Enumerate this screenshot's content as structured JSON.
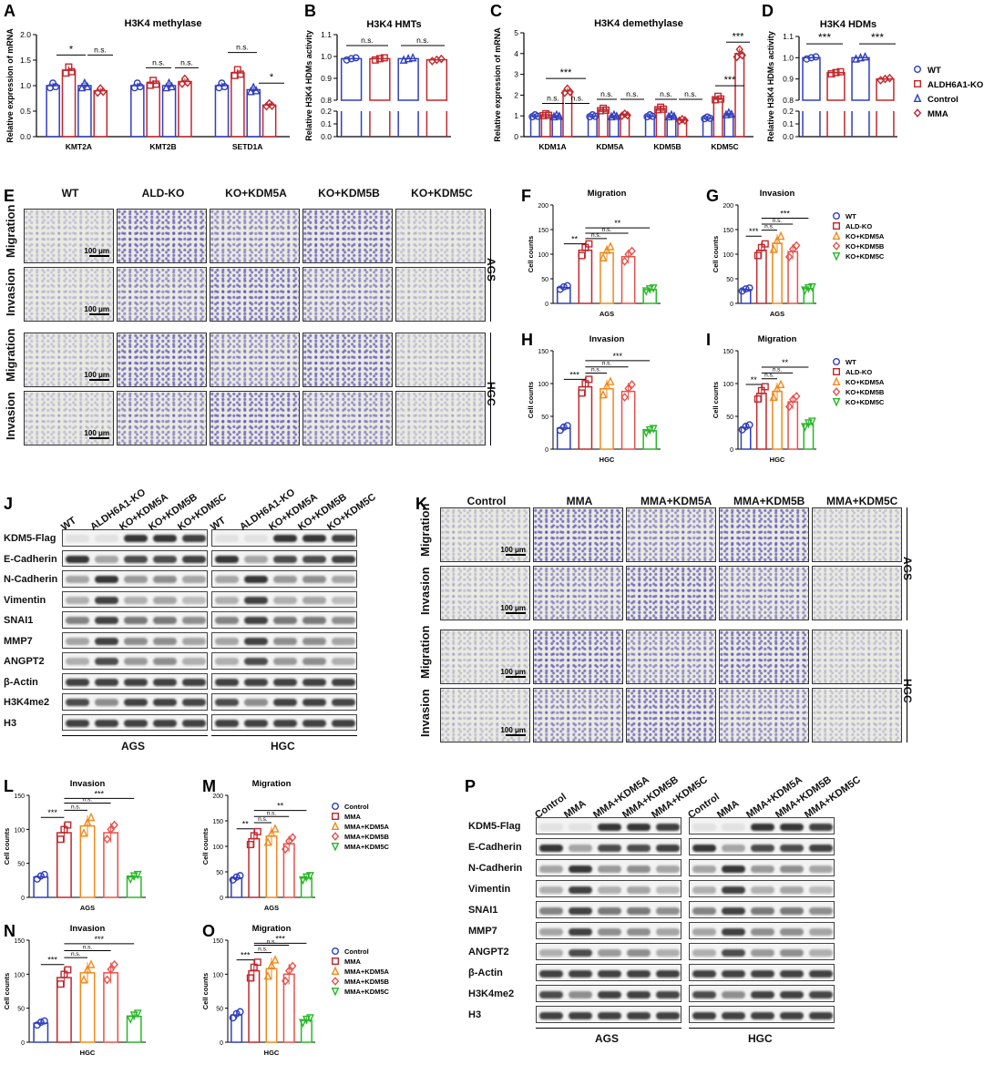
{
  "panel_letters": [
    "A",
    "B",
    "C",
    "D",
    "E",
    "F",
    "G",
    "H",
    "I",
    "J",
    "K",
    "L",
    "M",
    "N",
    "O",
    "P"
  ],
  "legend_wt": {
    "items": [
      "WT",
      "ALDH6A1-KO",
      "Control",
      "MMA"
    ],
    "colors": [
      "#2f3fbf",
      "#c0282d",
      "#2f3fbf",
      "#c0282d"
    ],
    "markers": [
      "circle",
      "square",
      "triangle",
      "diamond"
    ]
  },
  "legend_ko": {
    "items": [
      "WT",
      "ALD-KO",
      "KO+KDM5A",
      "KO+KDM5B",
      "KO+KDM5C"
    ],
    "colors": [
      "#2f3fbf",
      "#c0282d",
      "#f08a1c",
      "#e8504a",
      "#28b828"
    ]
  },
  "legend_mma": {
    "items": [
      "Control",
      "MMA",
      "MMA+KDM5A",
      "MMA+KDM5B",
      "MMA+KDM5C"
    ],
    "colors": [
      "#2f3fbf",
      "#c0282d",
      "#f08a1c",
      "#e8504a",
      "#28b828"
    ]
  },
  "chart_data": [
    {
      "panel": "A",
      "type": "bar",
      "title": "H3K4 methylase",
      "ylabel": "Relative expression of mRNA",
      "categories": [
        "KMT2A",
        "KMT2B",
        "SETD1A"
      ],
      "series": [
        {
          "name": "WT",
          "values": [
            1.0,
            1.0,
            1.0
          ]
        },
        {
          "name": "ALDH6A1-KO",
          "values": [
            1.3,
            1.05,
            1.25
          ]
        },
        {
          "name": "Control",
          "values": [
            1.0,
            1.0,
            0.92
          ]
        },
        {
          "name": "MMA",
          "values": [
            0.9,
            1.08,
            0.62
          ]
        }
      ],
      "ylim": [
        0,
        2.0
      ],
      "yticks": [
        "0.0",
        "0.5",
        "1.0",
        "1.5",
        "2.0"
      ],
      "sig": [
        "*",
        "n.s.",
        "n.s.",
        "n.s.",
        "n.s.",
        "*"
      ]
    },
    {
      "panel": "B",
      "type": "bar",
      "title": "H3K4 HMTs",
      "ylabel": "Relative H3K4 HDMs activity",
      "categories": [
        "WT",
        "ALDH6A1-KO",
        "Control",
        "MMA"
      ],
      "values": [
        0.99,
        0.99,
        0.99,
        0.985
      ],
      "ylim": [
        0,
        1.1
      ],
      "yticks": [
        "0.0",
        "0.1",
        "0.2",
        "0.8",
        "0.9",
        "1.0",
        "1.1"
      ],
      "sig": [
        "n.s.",
        "n.s."
      ]
    },
    {
      "panel": "C",
      "type": "bar",
      "title": "H3K4 demethylase",
      "ylabel": "Relative expression of mRNA",
      "categories": [
        "KDM1A",
        "KDM5A",
        "KDM5B",
        "KDM5C"
      ],
      "series": [
        {
          "name": "WT",
          "values": [
            1.0,
            1.0,
            1.0,
            0.9
          ]
        },
        {
          "name": "ALDH6A1-KO",
          "values": [
            1.05,
            1.3,
            1.35,
            1.85
          ]
        },
        {
          "name": "Control",
          "values": [
            1.0,
            1.0,
            1.0,
            1.1
          ]
        },
        {
          "name": "MMA",
          "values": [
            2.2,
            1.05,
            0.8,
            4.0
          ]
        }
      ],
      "ylim": [
        0,
        5
      ],
      "yticks": [
        "0",
        "1",
        "2",
        "3",
        "4",
        "5"
      ],
      "sig": [
        "n.s.",
        "n.s.",
        "***",
        "n.s.",
        "n.s.",
        "n.s.",
        "n.s.",
        "***",
        "***"
      ]
    },
    {
      "panel": "D",
      "type": "bar",
      "title": "H3K4 HDMs",
      "ylabel": "Relative H3K4 HDMs activity",
      "categories": [
        "WT",
        "ALDH6A1-KO",
        "Control",
        "MMA"
      ],
      "values": [
        1.0,
        0.93,
        1.0,
        0.9
      ],
      "ylim": [
        0,
        1.1
      ],
      "yticks": [
        "0.0",
        "0.1",
        "0.2",
        "0.8",
        "0.9",
        "1.0",
        "1.1"
      ],
      "sig": [
        "***",
        "***"
      ]
    },
    {
      "panel": "F",
      "type": "bar",
      "title": "Migration",
      "ylabel": "Cell counts",
      "xlabel": "AGS",
      "categories": [
        "WT",
        "ALD-KO",
        "KO+KDM5A",
        "KO+KDM5B",
        "KO+KDM5C"
      ],
      "values": [
        32,
        108,
        103,
        95,
        28
      ],
      "ylim": [
        0,
        200
      ],
      "yticks": [
        "0",
        "50",
        "100",
        "150",
        "200"
      ],
      "sig": [
        "**",
        "n.s.",
        "n.s.",
        "**"
      ]
    },
    {
      "panel": "G",
      "type": "bar",
      "title": "Invasion",
      "ylabel": "Cell counts",
      "xlabel": "AGS",
      "categories": [
        "WT",
        "ALD-KO",
        "KO+KDM5A",
        "KO+KDM5B",
        "KO+KDM5C"
      ],
      "values": [
        28,
        108,
        122,
        105,
        30
      ],
      "ylim": [
        0,
        200
      ],
      "yticks": [
        "0",
        "50",
        "100",
        "150",
        "200"
      ],
      "sig": [
        "***",
        "n.s.",
        "n.s.",
        "***"
      ]
    },
    {
      "panel": "H",
      "type": "bar",
      "title": "Invasion",
      "ylabel": "Cell counts",
      "xlabel": "HGC",
      "categories": [
        "WT",
        "ALD-KO",
        "KO+KDM5A",
        "KO+KDM5B",
        "KO+KDM5C"
      ],
      "values": [
        32,
        95,
        92,
        88,
        28
      ],
      "ylim": [
        0,
        150
      ],
      "yticks": [
        "0",
        "50",
        "100",
        "150"
      ],
      "sig": [
        "***",
        "n.s.",
        "n.s.",
        "***"
      ]
    },
    {
      "panel": "I",
      "type": "bar",
      "title": "Migration",
      "ylabel": "Cell counts",
      "xlabel": "HGC",
      "categories": [
        "WT",
        "ALD-KO",
        "KO+KDM5A",
        "KO+KDM5B",
        "KO+KDM5C"
      ],
      "values": [
        33,
        85,
        88,
        72,
        38
      ],
      "ylim": [
        0,
        150
      ],
      "yticks": [
        "0",
        "50",
        "100",
        "150"
      ],
      "sig": [
        "**",
        "n.s.",
        "n.s.",
        "**"
      ]
    },
    {
      "panel": "L",
      "type": "bar",
      "title": "Invasion",
      "ylabel": "Cell counts",
      "xlabel": "AGS",
      "categories": [
        "Control",
        "MMA",
        "MMA+KDM5A",
        "MMA+KDM5B",
        "MMA+KDM5C"
      ],
      "values": [
        30,
        95,
        105,
        95,
        30
      ],
      "ylim": [
        0,
        150
      ],
      "yticks": [
        "0",
        "50",
        "100",
        "150"
      ],
      "sig": [
        "***",
        "n.s.",
        "n.s.",
        "***"
      ]
    },
    {
      "panel": "M",
      "type": "bar",
      "title": "Migration",
      "ylabel": "Cell counts",
      "xlabel": "AGS",
      "categories": [
        "Control",
        "MMA",
        "MMA+KDM5A",
        "MMA+KDM5B",
        "MMA+KDM5C"
      ],
      "values": [
        38,
        115,
        120,
        105,
        38
      ],
      "ylim": [
        0,
        200
      ],
      "yticks": [
        "0",
        "50",
        "100",
        "150",
        "200"
      ],
      "sig": [
        "**",
        "n.s.",
        "n.s.",
        "**"
      ]
    },
    {
      "panel": "N",
      "type": "bar",
      "title": "Invasion",
      "ylabel": "Cell counts",
      "xlabel": "HGC",
      "categories": [
        "Control",
        "MMA",
        "MMA+KDM5A",
        "MMA+KDM5B",
        "MMA+KDM5C"
      ],
      "values": [
        28,
        95,
        102,
        102,
        38
      ],
      "ylim": [
        0,
        150
      ],
      "yticks": [
        "0",
        "50",
        "100",
        "150"
      ],
      "sig": [
        "***",
        "n.s.",
        "n.s.",
        "***"
      ]
    },
    {
      "panel": "O",
      "type": "bar",
      "title": "Migration",
      "ylabel": "Cell counts",
      "xlabel": "HGC",
      "categories": [
        "Control",
        "MMA",
        "MMA+KDM5A",
        "MMA+KDM5B",
        "MMA+KDM5C"
      ],
      "values": [
        40,
        105,
        108,
        100,
        32
      ],
      "ylim": [
        0,
        150
      ],
      "yticks": [
        "0",
        "50",
        "100",
        "150"
      ],
      "sig": [
        "***",
        "n.s.",
        "n.s.",
        "***"
      ]
    }
  ],
  "panel_e": {
    "cols": [
      "WT",
      "ALD-KO",
      "KO+KDM5A",
      "KO+KDM5B",
      "KO+KDM5C"
    ],
    "rows": [
      "Migration",
      "Invasion",
      "Migration",
      "Invasion"
    ],
    "groups": [
      "AGS",
      "HGC"
    ],
    "scale": "100 μm"
  },
  "panel_k": {
    "cols": [
      "Control",
      "MMA",
      "MMA+KDM5A",
      "MMA+KDM5B",
      "MMA+KDM5C"
    ],
    "rows": [
      "Migration",
      "Invasion",
      "Migration",
      "Invasion"
    ],
    "groups": [
      "AGS",
      "HGC"
    ],
    "scale": "100 μm"
  },
  "panel_j": {
    "lanes": [
      "WT",
      "ALDH6A1-KO",
      "KO+KDM5A",
      "KO+KDM5B",
      "KO+KDM5C"
    ],
    "proteins": [
      "KDM5-Flag",
      "E-Cadherin",
      "N-Cadherin",
      "Vimentin",
      "SNAI1",
      "MMP7",
      "ANGPT2",
      "β-Actin",
      "H3K4me2",
      "H3"
    ],
    "groups": [
      "AGS",
      "HGC"
    ]
  },
  "panel_p": {
    "lanes": [
      "Control",
      "MMA",
      "MMA+KDM5A",
      "MMA+KDM5B",
      "MMA+KDM5C"
    ],
    "proteins": [
      "KDM5-Flag",
      "E-Cadherin",
      "N-Cadherin",
      "Vimentin",
      "SNAI1",
      "MMP7",
      "ANGPT2",
      "β-Actin",
      "H3K4me2",
      "H3"
    ],
    "groups": [
      "AGS",
      "HGC"
    ]
  }
}
